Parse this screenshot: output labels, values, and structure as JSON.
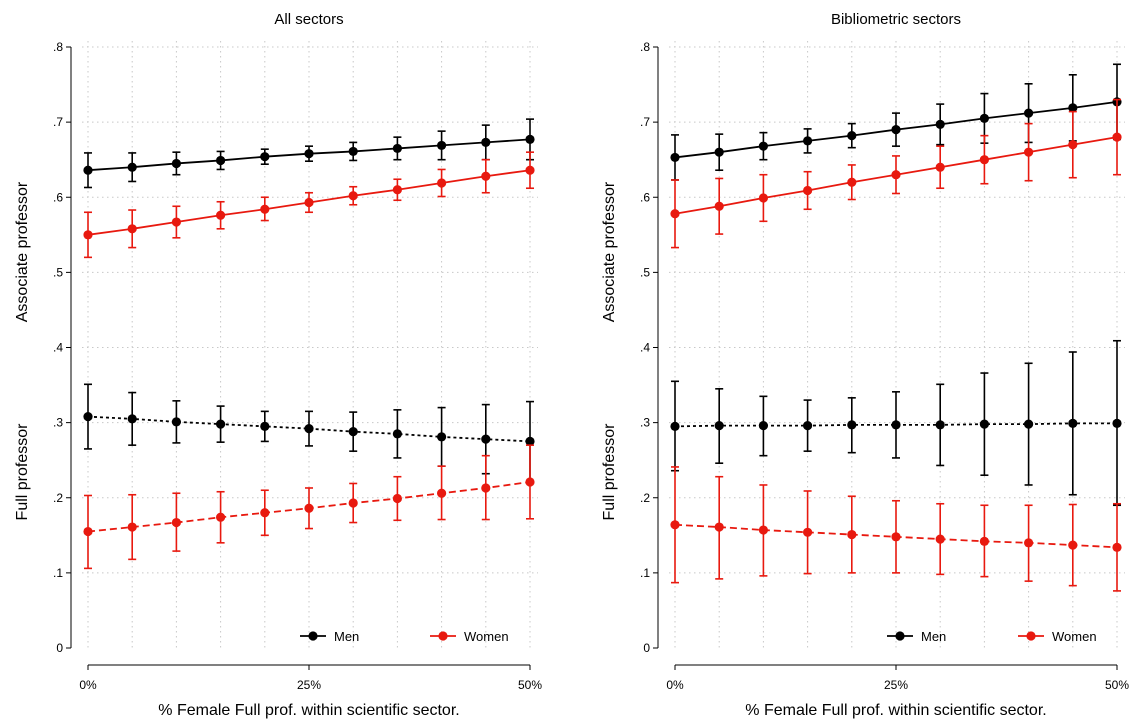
{
  "chart_data": [
    {
      "type": "line",
      "title": "All sectors",
      "xlabel": "% Female Full prof. within scientific sector.",
      "ylabel_top": "Associate professor",
      "ylabel_bottom": "Full professor",
      "x": [
        0,
        5,
        10,
        15,
        20,
        25,
        30,
        35,
        40,
        45,
        50
      ],
      "x_ticks": [
        0,
        25,
        50
      ],
      "x_tick_labels": [
        "0%",
        "25%",
        "50%"
      ],
      "y_ticks": [
        0,
        0.1,
        0.2,
        0.3,
        0.4,
        0.5,
        0.6,
        0.7,
        0.8
      ],
      "y_tick_labels": [
        "0",
        ".1",
        ".2",
        ".3",
        ".4",
        ".5",
        ".6",
        ".7",
        ".8"
      ],
      "xlim": [
        0,
        50
      ],
      "ylim": [
        0,
        0.8
      ],
      "grid": true,
      "series": [
        {
          "name": "Men",
          "group": "Associate professor",
          "color": "#000000",
          "linestyle": "solid",
          "values": [
            0.636,
            0.64,
            0.645,
            0.649,
            0.654,
            0.658,
            0.661,
            0.665,
            0.669,
            0.673,
            0.677
          ],
          "lower": [
            0.613,
            0.621,
            0.63,
            0.637,
            0.644,
            0.648,
            0.649,
            0.65,
            0.65,
            0.65,
            0.65
          ],
          "upper": [
            0.659,
            0.659,
            0.66,
            0.661,
            0.664,
            0.668,
            0.673,
            0.68,
            0.688,
            0.696,
            0.704
          ]
        },
        {
          "name": "Women",
          "group": "Associate professor",
          "color": "#e8190f",
          "linestyle": "solid",
          "values": [
            0.55,
            0.558,
            0.567,
            0.576,
            0.584,
            0.593,
            0.602,
            0.61,
            0.619,
            0.628,
            0.636
          ],
          "lower": [
            0.52,
            0.533,
            0.546,
            0.558,
            0.569,
            0.58,
            0.59,
            0.596,
            0.601,
            0.606,
            0.612
          ],
          "upper": [
            0.58,
            0.583,
            0.588,
            0.594,
            0.6,
            0.606,
            0.614,
            0.624,
            0.637,
            0.65,
            0.66
          ]
        },
        {
          "name": "Men",
          "group": "Full professor",
          "color": "#000000",
          "linestyle": "dotted",
          "values": [
            0.308,
            0.305,
            0.301,
            0.298,
            0.295,
            0.292,
            0.288,
            0.285,
            0.281,
            0.278,
            0.275
          ],
          "lower": [
            0.265,
            0.27,
            0.273,
            0.274,
            0.275,
            0.269,
            0.262,
            0.253,
            0.242,
            0.232,
            0.222
          ],
          "upper": [
            0.351,
            0.34,
            0.329,
            0.322,
            0.315,
            0.315,
            0.314,
            0.317,
            0.32,
            0.324,
            0.328
          ]
        },
        {
          "name": "Women",
          "group": "Full professor",
          "color": "#e8190f",
          "linestyle": "dashed",
          "values": [
            0.155,
            0.161,
            0.167,
            0.174,
            0.18,
            0.186,
            0.193,
            0.199,
            0.206,
            0.213,
            0.221
          ],
          "lower": [
            0.106,
            0.118,
            0.129,
            0.14,
            0.15,
            0.159,
            0.167,
            0.17,
            0.171,
            0.171,
            0.172
          ],
          "upper": [
            0.203,
            0.204,
            0.206,
            0.208,
            0.21,
            0.213,
            0.219,
            0.228,
            0.242,
            0.256,
            0.27
          ]
        }
      ],
      "legend": {
        "position": "bottom-right",
        "entries": [
          "Men",
          "Women"
        ]
      }
    },
    {
      "type": "line",
      "title": "Bibliometric sectors",
      "xlabel": "% Female Full prof. within scientific sector.",
      "ylabel_top": "Associate professor",
      "ylabel_bottom": "Full professor",
      "x": [
        0,
        5,
        10,
        15,
        20,
        25,
        30,
        35,
        40,
        45,
        50
      ],
      "x_ticks": [
        0,
        25,
        50
      ],
      "x_tick_labels": [
        "0%",
        "25%",
        "50%"
      ],
      "y_ticks": [
        0,
        0.1,
        0.2,
        0.3,
        0.4,
        0.5,
        0.6,
        0.7,
        0.8
      ],
      "y_tick_labels": [
        "0",
        ".1",
        ".2",
        ".3",
        ".4",
        ".5",
        ".6",
        ".7",
        ".8"
      ],
      "xlim": [
        0,
        50
      ],
      "ylim": [
        0,
        0.8
      ],
      "grid": true,
      "series": [
        {
          "name": "Men",
          "group": "Associate professor",
          "color": "#000000",
          "linestyle": "solid",
          "values": [
            0.653,
            0.66,
            0.668,
            0.675,
            0.682,
            0.69,
            0.697,
            0.705,
            0.712,
            0.719,
            0.727
          ],
          "lower": [
            0.623,
            0.636,
            0.65,
            0.659,
            0.666,
            0.668,
            0.67,
            0.672,
            0.673,
            0.675,
            0.677
          ],
          "upper": [
            0.683,
            0.684,
            0.686,
            0.691,
            0.698,
            0.712,
            0.724,
            0.738,
            0.751,
            0.763,
            0.777
          ]
        },
        {
          "name": "Women",
          "group": "Associate professor",
          "color": "#e8190f",
          "linestyle": "solid",
          "values": [
            0.578,
            0.588,
            0.599,
            0.609,
            0.62,
            0.63,
            0.64,
            0.65,
            0.66,
            0.67,
            0.68
          ],
          "lower": [
            0.533,
            0.551,
            0.568,
            0.584,
            0.597,
            0.605,
            0.612,
            0.618,
            0.622,
            0.626,
            0.63
          ],
          "upper": [
            0.623,
            0.625,
            0.63,
            0.634,
            0.643,
            0.655,
            0.668,
            0.682,
            0.698,
            0.714,
            0.73
          ]
        },
        {
          "name": "Men",
          "group": "Full professor",
          "color": "#000000",
          "linestyle": "dotted",
          "values": [
            0.295,
            0.296,
            0.296,
            0.296,
            0.297,
            0.297,
            0.297,
            0.298,
            0.298,
            0.299,
            0.299
          ],
          "lower": [
            0.236,
            0.246,
            0.256,
            0.262,
            0.26,
            0.253,
            0.243,
            0.23,
            0.217,
            0.204,
            0.19
          ],
          "upper": [
            0.355,
            0.345,
            0.335,
            0.33,
            0.333,
            0.341,
            0.351,
            0.366,
            0.379,
            0.394,
            0.409
          ]
        },
        {
          "name": "Women",
          "group": "Full professor",
          "color": "#e8190f",
          "linestyle": "dashed",
          "values": [
            0.164,
            0.161,
            0.157,
            0.154,
            0.151,
            0.148,
            0.145,
            0.142,
            0.14,
            0.137,
            0.134
          ],
          "lower": [
            0.087,
            0.092,
            0.096,
            0.099,
            0.1,
            0.1,
            0.098,
            0.095,
            0.089,
            0.083,
            0.076
          ],
          "upper": [
            0.241,
            0.228,
            0.217,
            0.209,
            0.202,
            0.196,
            0.192,
            0.19,
            0.19,
            0.191,
            0.192
          ]
        }
      ],
      "legend": {
        "position": "bottom-right",
        "entries": [
          "Men",
          "Women"
        ]
      }
    }
  ]
}
